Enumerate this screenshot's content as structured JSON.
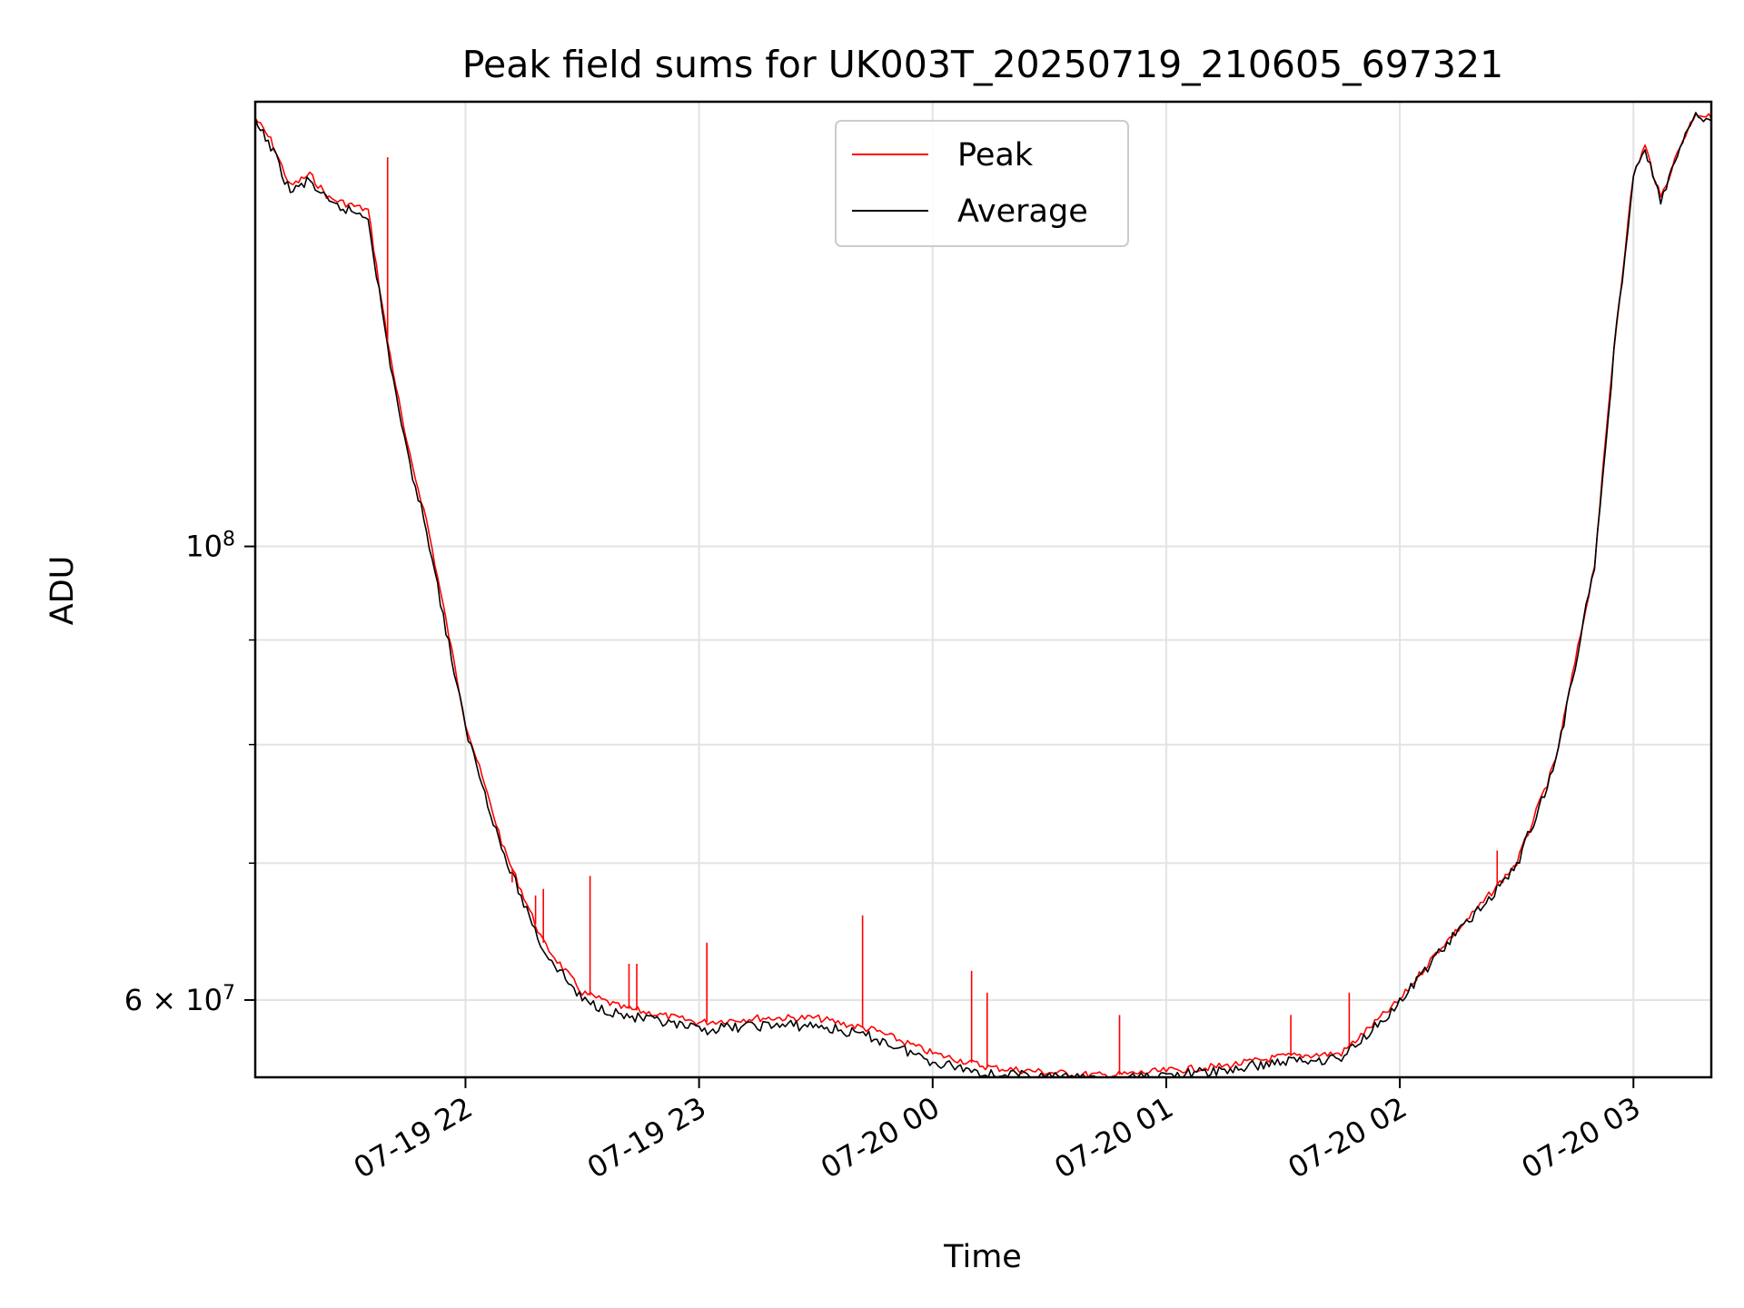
{
  "chart_data": {
    "type": "line",
    "title": "Peak field sums for UK003T_20250719_210605_697321",
    "xlabel": "Time",
    "ylabel": "ADU",
    "x_axis": {
      "type": "datetime",
      "range": [
        "2025-07-19 21:06",
        "2025-07-20 03:20"
      ],
      "ticks": [
        {
          "value": "2025-07-19 22:00",
          "label": "07-19 22"
        },
        {
          "value": "2025-07-19 23:00",
          "label": "07-19 23"
        },
        {
          "value": "2025-07-20 00:00",
          "label": "07-20 00"
        },
        {
          "value": "2025-07-20 01:00",
          "label": "07-20 01"
        },
        {
          "value": "2025-07-20 02:00",
          "label": "07-20 02"
        },
        {
          "value": "2025-07-20 03:00",
          "label": "07-20 03"
        }
      ]
    },
    "y_axis": {
      "scale": "log",
      "range": [
        55000000,
        165000000
      ],
      "major_ticks": [
        {
          "value": 60000000,
          "base": "6",
          "exp": "7"
        },
        {
          "value": 100000000,
          "base": "",
          "exp": "8"
        }
      ],
      "minor_gridlines": [
        70000000,
        80000000,
        90000000
      ]
    },
    "grid": true,
    "legend": {
      "placement": "top-center",
      "entries": [
        {
          "name": "Peak",
          "color": "#ff0000"
        },
        {
          "name": "Average",
          "color": "#000000"
        }
      ]
    },
    "series": [
      {
        "name": "Peak",
        "color": "#ff0000",
        "x": [
          "2025-07-19 21:06",
          "2025-07-19 21:10",
          "2025-07-19 21:15",
          "2025-07-19 21:20",
          "2025-07-19 21:25",
          "2025-07-19 21:30",
          "2025-07-19 21:35",
          "2025-07-19 21:40",
          "2025-07-19 21:45",
          "2025-07-19 21:50",
          "2025-07-19 21:55",
          "2025-07-19 22:00",
          "2025-07-19 22:10",
          "2025-07-19 22:20",
          "2025-07-19 22:30",
          "2025-07-19 22:40",
          "2025-07-19 22:50",
          "2025-07-19 23:00",
          "2025-07-19 23:15",
          "2025-07-19 23:30",
          "2025-07-19 23:45",
          "2025-07-20 00:00",
          "2025-07-20 00:15",
          "2025-07-20 00:30",
          "2025-07-20 00:45",
          "2025-07-20 01:00",
          "2025-07-20 01:15",
          "2025-07-20 01:30",
          "2025-07-20 01:45",
          "2025-07-20 02:00",
          "2025-07-20 02:10",
          "2025-07-20 02:20",
          "2025-07-20 02:30",
          "2025-07-20 02:40",
          "2025-07-20 02:50",
          "2025-07-20 02:55",
          "2025-07-20 03:00",
          "2025-07-20 03:03",
          "2025-07-20 03:07",
          "2025-07-20 03:12",
          "2025-07-20 03:16",
          "2025-07-20 03:20"
        ],
        "y": [
          162000000,
          158000000,
          150000000,
          152000000,
          148000000,
          147000000,
          146000000,
          126000000,
          112000000,
          103000000,
          92000000,
          82000000,
          71000000,
          64000000,
          60500000,
          59500000,
          59000000,
          58500000,
          58800000,
          58800000,
          58000000,
          56500000,
          55600000,
          55300000,
          55100000,
          55400000,
          55700000,
          56300000,
          56500000,
          60000000,
          63500000,
          66500000,
          70000000,
          78500000,
          98000000,
          125000000,
          152000000,
          157000000,
          148000000,
          157000000,
          163000000,
          162000000
        ]
      },
      {
        "name": "Average",
        "color": "#000000",
        "x": [
          "2025-07-19 21:06",
          "2025-07-19 21:10",
          "2025-07-19 21:15",
          "2025-07-19 21:20",
          "2025-07-19 21:25",
          "2025-07-19 21:30",
          "2025-07-19 21:35",
          "2025-07-19 21:40",
          "2025-07-19 21:45",
          "2025-07-19 21:50",
          "2025-07-19 21:55",
          "2025-07-19 22:00",
          "2025-07-19 22:10",
          "2025-07-19 22:20",
          "2025-07-19 22:30",
          "2025-07-19 22:40",
          "2025-07-19 22:50",
          "2025-07-19 23:00",
          "2025-07-19 23:15",
          "2025-07-19 23:30",
          "2025-07-19 23:45",
          "2025-07-20 00:00",
          "2025-07-20 00:15",
          "2025-07-20 00:30",
          "2025-07-20 00:45",
          "2025-07-20 01:00",
          "2025-07-20 01:15",
          "2025-07-20 01:30",
          "2025-07-20 01:45",
          "2025-07-20 02:00",
          "2025-07-20 02:10",
          "2025-07-20 02:20",
          "2025-07-20 02:30",
          "2025-07-20 02:40",
          "2025-07-20 02:50",
          "2025-07-20 02:55",
          "2025-07-20 03:00",
          "2025-07-20 03:03",
          "2025-07-20 03:07",
          "2025-07-20 03:12",
          "2025-07-20 03:16",
          "2025-07-20 03:20"
        ],
        "y": [
          161000000,
          157000000,
          149000000,
          151000000,
          147000000,
          146000000,
          145000000,
          125000000,
          111000000,
          102000000,
          91000000,
          81500000,
          70500000,
          63500000,
          60000000,
          59000000,
          58500000,
          58000000,
          58300000,
          58300000,
          57500000,
          56000000,
          55200000,
          55000000,
          54800000,
          55100000,
          55400000,
          56000000,
          56200000,
          59800000,
          63300000,
          66300000,
          69800000,
          78300000,
          97800000,
          124500000,
          151500000,
          156500000,
          147500000,
          156500000,
          162500000,
          161500000
        ]
      }
    ],
    "spikes": [
      {
        "x": "2025-07-19 21:40",
        "y": 155000000
      },
      {
        "x": "2025-07-19 22:12",
        "y": 68500000
      },
      {
        "x": "2025-07-19 22:18",
        "y": 67500000
      },
      {
        "x": "2025-07-19 22:20",
        "y": 68000000
      },
      {
        "x": "2025-07-19 22:32",
        "y": 69000000
      },
      {
        "x": "2025-07-19 22:42",
        "y": 62500000
      },
      {
        "x": "2025-07-19 22:44",
        "y": 62500000
      },
      {
        "x": "2025-07-19 23:02",
        "y": 64000000
      },
      {
        "x": "2025-07-19 23:42",
        "y": 66000000
      },
      {
        "x": "2025-07-20 00:10",
        "y": 62000000
      },
      {
        "x": "2025-07-20 00:14",
        "y": 60500000
      },
      {
        "x": "2025-07-20 00:48",
        "y": 59000000
      },
      {
        "x": "2025-07-20 01:32",
        "y": 59000000
      },
      {
        "x": "2025-07-20 01:47",
        "y": 60500000
      },
      {
        "x": "2025-07-20 02:25",
        "y": 71000000
      }
    ]
  }
}
